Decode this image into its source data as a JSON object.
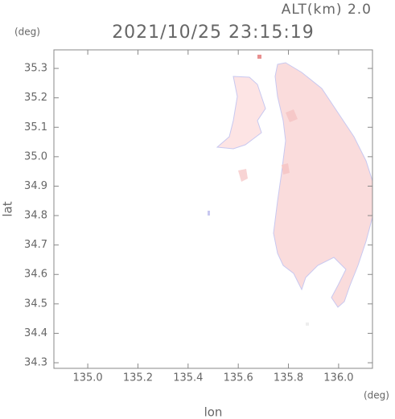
{
  "chart_data": {
    "type": "map",
    "title": "2021/10/25 23:15:19",
    "altitude_label": "ALT(km)  2.0",
    "y_unit": "(deg)",
    "x_unit": "(deg)",
    "xlabel": "lon",
    "ylabel": "lat",
    "xlim": [
      134.865,
      136.135
    ],
    "ylim": [
      34.281,
      35.363
    ],
    "xticks": [
      {
        "value": 135.0,
        "label": "135.0"
      },
      135.2,
      135.4,
      135.6,
      135.8,
      {
        "value": 136.0,
        "label": "136.0"
      }
    ],
    "yticks": [
      34.3,
      34.4,
      34.5,
      34.6,
      34.7,
      34.8,
      34.9,
      {
        "value": 35.0,
        "label": "35.0"
      },
      35.1,
      35.2,
      35.3
    ]
  }
}
